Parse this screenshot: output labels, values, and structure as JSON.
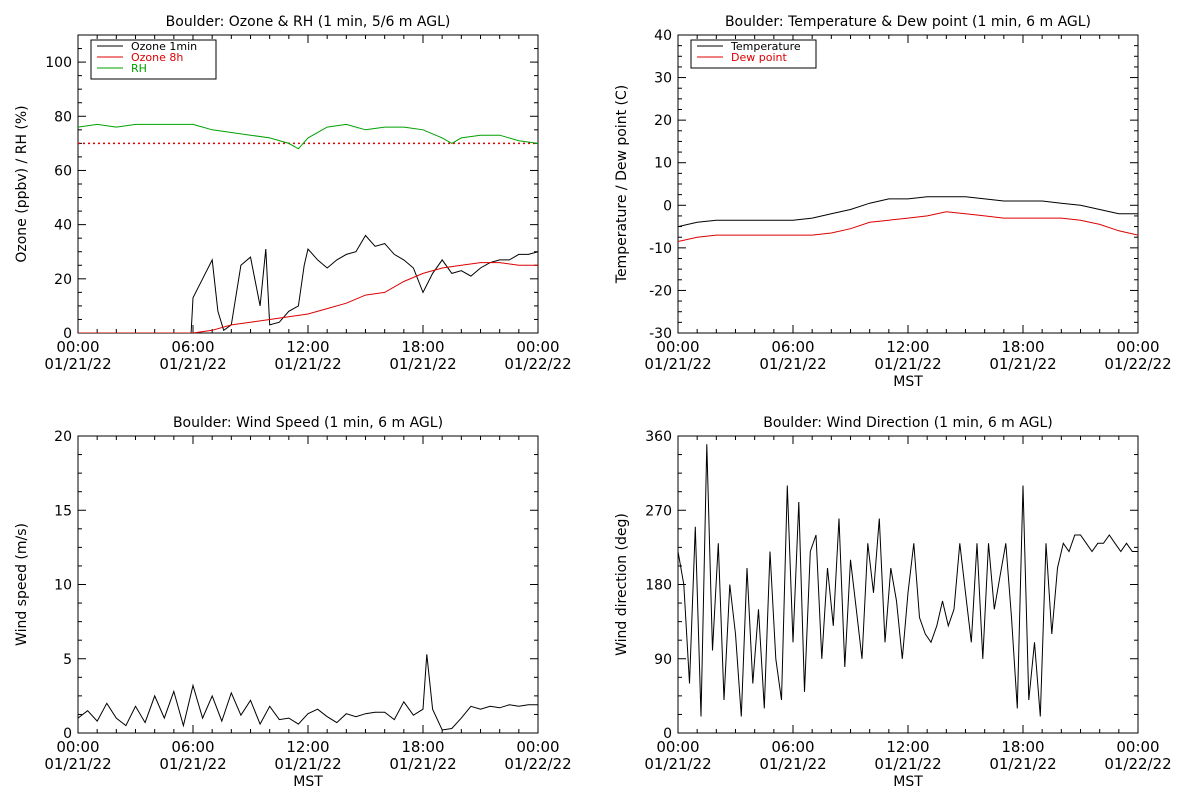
{
  "chart_data": [
    {
      "type": "line",
      "title": "Boulder: Ozone & RH (1 min, 5/6 m AGL)",
      "ylabel": "Ozone (ppbv) / RH (%)",
      "xlabel": "",
      "ylim": [
        0,
        110
      ],
      "yticks": [
        0,
        20,
        40,
        60,
        80,
        100
      ],
      "x_ticks": [
        {
          "hour": 0,
          "time": "00:00",
          "date": "01/21/22"
        },
        {
          "hour": 6,
          "time": "06:00",
          "date": "01/21/22"
        },
        {
          "hour": 12,
          "time": "12:00",
          "date": "01/21/22"
        },
        {
          "hour": 18,
          "time": "18:00",
          "date": "01/21/22"
        },
        {
          "hour": 24,
          "time": "00:00",
          "date": "01/22/22"
        }
      ],
      "legend": {
        "placement": "top-left"
      },
      "hline": {
        "y": 70,
        "color": "#dd0000",
        "style": "dotted"
      },
      "series": [
        {
          "name": "Ozone 1min",
          "color": "#000000",
          "x": [
            0,
            1,
            2,
            3,
            4,
            5,
            5.9,
            6,
            6.5,
            7,
            7.3,
            7.6,
            8,
            8.5,
            9,
            9.5,
            9.8,
            10,
            10.5,
            11,
            11.5,
            11.8,
            12,
            12.5,
            13,
            13.5,
            14,
            14.5,
            15,
            15.5,
            16,
            16.5,
            17,
            17.5,
            18,
            18.5,
            19,
            19.5,
            20,
            20.5,
            21,
            21.5,
            22,
            22.5,
            23,
            23.5,
            24
          ],
          "y": [
            0,
            0,
            0,
            0,
            0,
            0,
            0,
            13,
            20,
            27,
            8,
            1,
            3,
            25,
            28,
            10,
            31,
            3,
            4,
            8,
            10,
            25,
            31,
            27,
            24,
            27,
            29,
            30,
            36,
            32,
            33,
            29,
            27,
            24,
            15,
            22,
            27,
            22,
            23,
            21,
            24,
            26,
            27,
            27,
            29,
            29,
            30
          ]
        },
        {
          "name": "Ozone 8h",
          "color": "#dd0000",
          "x": [
            0,
            2,
            4,
            6,
            7,
            8,
            9,
            10,
            11,
            12,
            13,
            14,
            15,
            16,
            17,
            18,
            19,
            20,
            21,
            22,
            23,
            24
          ],
          "y": [
            0,
            0,
            0,
            0,
            1,
            3,
            4,
            5,
            6,
            7,
            9,
            11,
            14,
            15,
            19,
            22,
            24,
            25,
            26,
            26,
            25,
            25
          ]
        },
        {
          "name": "RH",
          "color": "#00a000",
          "x": [
            0,
            1,
            2,
            3,
            4,
            5,
            6,
            7,
            8,
            9,
            10,
            11,
            11.5,
            12,
            13,
            14,
            15,
            16,
            17,
            18,
            19,
            19.5,
            20,
            21,
            22,
            23,
            24
          ],
          "y": [
            76,
            77,
            76,
            77,
            77,
            77,
            77,
            75,
            74,
            73,
            72,
            70,
            68,
            72,
            76,
            77,
            75,
            76,
            76,
            75,
            72,
            70,
            72,
            73,
            73,
            71,
            70
          ]
        }
      ]
    },
    {
      "type": "line",
      "title": "Boulder: Temperature & Dew point (1 min, 6 m AGL)",
      "ylabel": "Temperature / Dew point (C)",
      "xlabel": "MST",
      "ylim": [
        -30,
        40
      ],
      "yticks": [
        -30,
        -20,
        -10,
        0,
        10,
        20,
        30,
        40
      ],
      "x_ticks": [
        {
          "hour": 0,
          "time": "00:00",
          "date": "01/21/22"
        },
        {
          "hour": 6,
          "time": "06:00",
          "date": "01/21/22"
        },
        {
          "hour": 12,
          "time": "12:00",
          "date": "01/21/22"
        },
        {
          "hour": 18,
          "time": "18:00",
          "date": "01/21/22"
        },
        {
          "hour": 24,
          "time": "00:00",
          "date": "01/22/22"
        }
      ],
      "legend": {
        "placement": "top-left"
      },
      "series": [
        {
          "name": "Temperature",
          "color": "#000000",
          "x": [
            0,
            1,
            2,
            3,
            4,
            5,
            6,
            7,
            8,
            9,
            10,
            11,
            12,
            13,
            14,
            15,
            16,
            17,
            18,
            19,
            20,
            21,
            22,
            23,
            24
          ],
          "y": [
            -5,
            -4,
            -3.5,
            -3.5,
            -3.5,
            -3.5,
            -3.5,
            -3,
            -2,
            -1,
            0.5,
            1.5,
            1.5,
            2,
            2,
            2,
            1.5,
            1,
            1,
            1,
            0.5,
            0,
            -1,
            -2,
            -2
          ]
        },
        {
          "name": "Dew point",
          "color": "#dd0000",
          "x": [
            0,
            1,
            2,
            3,
            4,
            5,
            6,
            7,
            8,
            9,
            10,
            11,
            12,
            13,
            14,
            15,
            16,
            17,
            18,
            19,
            20,
            21,
            22,
            23,
            24
          ],
          "y": [
            -8.5,
            -7.5,
            -7,
            -7,
            -7,
            -7,
            -7,
            -7,
            -6.5,
            -5.5,
            -4,
            -3.5,
            -3,
            -2.5,
            -1.5,
            -2,
            -2.5,
            -3,
            -3,
            -3,
            -3,
            -3.5,
            -4.5,
            -6,
            -7
          ]
        }
      ]
    },
    {
      "type": "line",
      "title": "Boulder: Wind Speed (1 min, 6 m AGL)",
      "ylabel": "Wind speed (m/s)",
      "xlabel": "MST",
      "ylim": [
        0,
        20
      ],
      "yticks": [
        0,
        5,
        10,
        15,
        20
      ],
      "x_ticks": [
        {
          "hour": 0,
          "time": "00:00",
          "date": "01/21/22"
        },
        {
          "hour": 6,
          "time": "06:00",
          "date": "01/21/22"
        },
        {
          "hour": 12,
          "time": "12:00",
          "date": "01/21/22"
        },
        {
          "hour": 18,
          "time": "18:00",
          "date": "01/21/22"
        },
        {
          "hour": 24,
          "time": "00:00",
          "date": "01/22/22"
        }
      ],
      "series": [
        {
          "name": "",
          "color": "#000000",
          "x": [
            0,
            0.5,
            1,
            1.5,
            2,
            2.5,
            3,
            3.5,
            4,
            4.5,
            5,
            5.5,
            6,
            6.5,
            7,
            7.5,
            8,
            8.5,
            9,
            9.5,
            10,
            10.5,
            11,
            11.5,
            12,
            12.5,
            13,
            13.5,
            14,
            14.5,
            15,
            15.5,
            16,
            16.5,
            17,
            17.5,
            18,
            18.2,
            18.5,
            19,
            19.5,
            20,
            20.5,
            21,
            21.5,
            22,
            22.5,
            23,
            23.5,
            24
          ],
          "y": [
            1,
            1.5,
            0.8,
            2,
            1,
            0.5,
            1.8,
            0.7,
            2.5,
            1,
            2.8,
            0.5,
            3.2,
            1,
            2.5,
            0.8,
            2.7,
            1.2,
            2.2,
            0.6,
            1.8,
            0.9,
            1,
            0.6,
            1.3,
            1.6,
            1.1,
            0.7,
            1.3,
            1.1,
            1.3,
            1.4,
            1.4,
            0.9,
            2.1,
            1.2,
            1.6,
            5.3,
            1.6,
            0.2,
            0.3,
            1,
            1.8,
            1.6,
            1.8,
            1.7,
            1.9,
            1.8,
            1.9,
            1.9
          ]
        }
      ]
    },
    {
      "type": "line",
      "title": "Boulder: Wind Direction (1 min, 6 m AGL)",
      "ylabel": "Wind direction (deg)",
      "xlabel": "MST",
      "ylim": [
        0,
        360
      ],
      "yticks": [
        0,
        90,
        180,
        270,
        360
      ],
      "x_ticks": [
        {
          "hour": 0,
          "time": "00:00",
          "date": "01/21/22"
        },
        {
          "hour": 6,
          "time": "06:00",
          "date": "01/21/22"
        },
        {
          "hour": 12,
          "time": "12:00",
          "date": "01/21/22"
        },
        {
          "hour": 18,
          "time": "18:00",
          "date": "01/21/22"
        },
        {
          "hour": 24,
          "time": "00:00",
          "date": "01/22/22"
        }
      ],
      "series": [
        {
          "name": "",
          "color": "#000000",
          "x": [
            0,
            0.3,
            0.6,
            0.9,
            1.2,
            1.5,
            1.8,
            2.1,
            2.4,
            2.7,
            3,
            3.3,
            3.6,
            3.9,
            4.2,
            4.5,
            4.8,
            5.1,
            5.4,
            5.7,
            6,
            6.3,
            6.6,
            6.9,
            7.2,
            7.5,
            7.8,
            8.1,
            8.4,
            8.7,
            9,
            9.3,
            9.6,
            9.9,
            10.2,
            10.5,
            10.8,
            11.1,
            11.4,
            11.7,
            12,
            12.3,
            12.6,
            12.9,
            13.2,
            13.5,
            13.8,
            14.1,
            14.4,
            14.7,
            15,
            15.3,
            15.6,
            15.9,
            16.2,
            16.5,
            16.8,
            17.1,
            17.4,
            17.7,
            18,
            18.3,
            18.6,
            18.9,
            19.2,
            19.5,
            19.8,
            20.1,
            20.4,
            20.7,
            21,
            21.3,
            21.6,
            21.9,
            22.2,
            22.5,
            22.8,
            23.1,
            23.4,
            23.7,
            24
          ],
          "y": [
            220,
            180,
            60,
            250,
            20,
            350,
            100,
            230,
            40,
            180,
            120,
            20,
            200,
            60,
            150,
            30,
            220,
            90,
            40,
            300,
            110,
            280,
            50,
            220,
            240,
            90,
            200,
            130,
            260,
            80,
            210,
            150,
            90,
            230,
            170,
            260,
            110,
            200,
            160,
            90,
            170,
            230,
            140,
            120,
            110,
            130,
            160,
            130,
            150,
            230,
            170,
            110,
            230,
            90,
            230,
            150,
            190,
            230,
            140,
            30,
            300,
            40,
            110,
            20,
            230,
            120,
            200,
            230,
            220,
            240,
            240,
            230,
            220,
            230,
            230,
            240,
            230,
            220,
            230,
            220,
            220
          ]
        }
      ]
    }
  ]
}
